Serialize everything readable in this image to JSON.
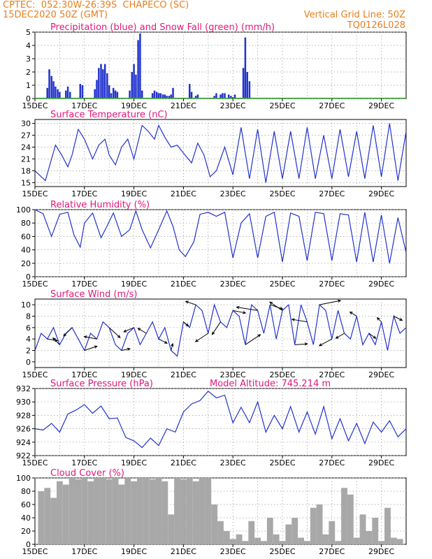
{
  "header": {
    "line1": "CPTEC:  052:30W-26:39S  CHAPECO (SC)",
    "line2": "15DEC2020 50Z (GMT)",
    "vgrid": "Vertical Grid Line: 50Z",
    "code": "TQ0126L028"
  },
  "colors": {
    "header": "#e57f1e",
    "panel_title": "#e0177a",
    "series": "#2233cc",
    "snow": "#22aa22",
    "cloud": "#a8a8a8"
  },
  "x_ticks": [
    "15DEC",
    "17DEC",
    "19DEC",
    "21DEC",
    "23DEC",
    "25DEC",
    "27DEC",
    "29DEC"
  ],
  "chart_data": [
    {
      "type": "bar",
      "title": "Precipitation (blue) and Snow Fall (green) (mm/h)",
      "xlabel": "",
      "ylabel": "",
      "xlim": [
        0,
        15
      ],
      "ylim": [
        0,
        5
      ],
      "y_ticks": [
        0,
        1,
        2,
        3,
        4,
        5
      ],
      "grid": true,
      "series": [
        {
          "name": "Precipitation",
          "color": "#2233cc",
          "x": [
            0.5,
            0.58,
            0.67,
            0.75,
            0.83,
            0.92,
            1.0,
            1.25,
            1.33,
            1.42,
            1.83,
            1.92,
            2.42,
            2.5,
            2.58,
            2.67,
            2.75,
            2.83,
            2.92,
            3.0,
            3.08,
            3.17,
            3.25,
            3.33,
            3.83,
            3.92,
            4.0,
            4.08,
            4.17,
            4.25,
            4.33,
            4.75,
            4.83,
            4.92,
            5.0,
            5.08,
            5.17,
            5.25,
            5.33,
            5.42,
            5.5,
            5.58,
            6.25,
            6.33,
            6.5,
            6.58,
            7.25,
            7.33,
            7.5,
            7.58,
            7.67,
            7.83,
            7.92,
            8.0,
            8.08,
            8.42,
            8.5,
            8.58,
            8.67
          ],
          "values": [
            0.8,
            2.2,
            1.7,
            1.3,
            0.9,
            0.7,
            0.5,
            0.6,
            0.9,
            0.5,
            1.1,
            1.0,
            0.7,
            1.4,
            2.3,
            2.6,
            2.2,
            2.6,
            1.9,
            1.0,
            0.4,
            0.8,
            0.6,
            0.5,
            0.6,
            2.0,
            2.6,
            1.8,
            4.4,
            4.9,
            0.6,
            0.4,
            0.6,
            0.5,
            0.4,
            0.4,
            0.3,
            0.3,
            0.2,
            0.2,
            0.3,
            0.8,
            1.1,
            0.5,
            0.2,
            0.3,
            0.2,
            0.4,
            0.3,
            0.4,
            0.4,
            0.3,
            0.2,
            0.1,
            0.3,
            2.3,
            4.6,
            2.0,
            1.3
          ]
        },
        {
          "name": "Snow Fall",
          "color": "#22aa22",
          "x": [],
          "values": []
        }
      ]
    },
    {
      "type": "line",
      "title": "Surface Temperature (nC)",
      "xlabel": "",
      "ylabel": "",
      "xlim": [
        0,
        15
      ],
      "ylim": [
        14,
        31
      ],
      "y_ticks": [
        15,
        18,
        21,
        24,
        27,
        30
      ],
      "grid": true,
      "series": [
        {
          "name": "Temperature",
          "x": [
            0.0,
            0.42,
            0.83,
            1.08,
            1.33,
            1.5,
            1.75,
            2.0,
            2.33,
            2.58,
            2.83,
            3.0,
            3.25,
            3.5,
            3.75,
            4.0,
            4.33,
            4.58,
            4.83,
            5.0,
            5.25,
            5.5,
            5.75,
            6.0,
            6.33,
            6.58,
            6.83,
            7.08,
            7.33,
            7.67,
            8.0,
            8.33,
            8.67,
            9.0,
            9.33,
            9.67,
            10.0,
            10.33,
            10.67,
            11.0,
            11.33,
            11.67,
            12.0,
            12.33,
            12.67,
            13.0,
            13.33,
            13.67,
            14.0,
            14.33,
            14.67,
            15.0
          ],
          "y": [
            18,
            15.5,
            24.5,
            22,
            19,
            22,
            28.5,
            26,
            21,
            24.5,
            26,
            22,
            19.5,
            24,
            26,
            21,
            29.5,
            28,
            26,
            29.5,
            26.5,
            24,
            24.5,
            22.5,
            20,
            25,
            22,
            16.5,
            18,
            24,
            17,
            29,
            16,
            28.5,
            15,
            28,
            16,
            28,
            16,
            29,
            16,
            27,
            16,
            28.5,
            16.5,
            28,
            16,
            29.5,
            16.5,
            30,
            15.5,
            28
          ]
        }
      ]
    },
    {
      "type": "line",
      "title": "Relative Humidity (%)",
      "xlabel": "",
      "ylabel": "",
      "xlim": [
        0,
        15
      ],
      "ylim": [
        0,
        100
      ],
      "y_ticks": [
        0,
        20,
        40,
        60,
        80,
        100
      ],
      "grid": true,
      "series": [
        {
          "name": "Relative Humidity",
          "x": [
            0.0,
            0.33,
            0.67,
            1.0,
            1.33,
            1.58,
            1.83,
            2.0,
            2.33,
            2.67,
            2.92,
            3.17,
            3.5,
            3.83,
            4.08,
            4.33,
            4.67,
            5.0,
            5.33,
            5.58,
            5.83,
            6.08,
            6.42,
            6.67,
            7.0,
            7.33,
            7.67,
            8.0,
            8.33,
            8.67,
            9.0,
            9.33,
            9.67,
            10.0,
            10.33,
            10.67,
            11.0,
            11.33,
            11.67,
            12.0,
            12.33,
            12.67,
            13.0,
            13.33,
            13.67,
            14.0,
            14.33,
            14.67,
            15.0
          ],
          "y": [
            100,
            94,
            60,
            93,
            96,
            62,
            44,
            80,
            95,
            58,
            76,
            95,
            60,
            70,
            98,
            70,
            43,
            70,
            98,
            75,
            40,
            30,
            52,
            93,
            96,
            90,
            96,
            28,
            80,
            94,
            28,
            90,
            96,
            22,
            95,
            90,
            24,
            96,
            94,
            24,
            94,
            92,
            22,
            96,
            22,
            92,
            20,
            88,
            36
          ]
        }
      ]
    },
    {
      "type": "line",
      "title": "Surface Wind (m/s)",
      "xlabel": "",
      "ylabel": "",
      "xlim": [
        0,
        15
      ],
      "ylim": [
        -1,
        11
      ],
      "y_ticks": [
        0,
        2,
        4,
        6,
        8,
        10
      ],
      "grid": true,
      "series": [
        {
          "name": "Wind Speed",
          "x": [
            0.0,
            0.25,
            0.5,
            0.75,
            1.0,
            1.25,
            1.5,
            1.75,
            2.0,
            2.25,
            2.5,
            2.75,
            3.0,
            3.25,
            3.5,
            3.75,
            4.0,
            4.25,
            4.5,
            4.75,
            5.0,
            5.25,
            5.5,
            5.75,
            6.0,
            6.25,
            6.5,
            6.75,
            7.0,
            7.25,
            7.5,
            7.75,
            8.0,
            8.25,
            8.5,
            8.75,
            9.0,
            9.25,
            9.5,
            9.75,
            10.0,
            10.25,
            10.5,
            10.75,
            11.0,
            11.25,
            11.5,
            11.75,
            12.0,
            12.25,
            12.5,
            12.75,
            13.0,
            13.25,
            13.5,
            13.75,
            14.0,
            14.25,
            14.5,
            14.75,
            15.0
          ],
          "y": [
            2,
            5,
            4,
            6,
            3,
            5,
            6,
            4,
            2,
            5,
            4,
            7,
            6,
            3,
            2,
            5,
            6,
            3,
            5,
            7,
            4,
            6,
            2,
            1,
            7,
            6,
            10,
            9,
            5,
            10,
            7,
            6,
            9,
            8,
            3,
            10,
            9,
            5,
            10,
            4,
            9,
            10,
            3,
            10,
            7,
            3,
            10,
            9,
            4,
            9,
            5,
            4,
            8,
            3,
            5,
            3,
            7,
            2,
            8,
            5,
            6
          ]
        }
      ],
      "wind_vectors": {
        "x": [
          0.5,
          1.0,
          1.5,
          2.0,
          2.5,
          3.0,
          3.5,
          4.0,
          4.5,
          5.0,
          5.5,
          6.0,
          6.5,
          7.0,
          7.5,
          8.0,
          8.5,
          9.0,
          9.5,
          10.0,
          10.5,
          11.0,
          11.5,
          12.0,
          12.5,
          13.0,
          13.5,
          14.0,
          14.5
        ],
        "u": [
          1.2,
          -0.8,
          -1.0,
          1.5,
          -1.5,
          1.3,
          1.0,
          -1.2,
          -1.0,
          1.0,
          0.2,
          0.6,
          -1.2,
          -1.5,
          -1.0,
          1.5,
          1.8,
          -2.5,
          1.5,
          -1.5,
          1.5,
          -1.8,
          2.5,
          -1.5,
          -1.0,
          -0.8,
          0.8,
          -0.5,
          1.0
        ],
        "v": [
          -0.2,
          0.8,
          -1.0,
          0.5,
          0.3,
          -1.2,
          0.2,
          -0.5,
          0.6,
          -0.5,
          0.8,
          -0.5,
          0.4,
          -1.0,
          -1.5,
          -0.3,
          1.2,
          0.4,
          -0.5,
          1.0,
          0.1,
          0.3,
          0.5,
          -0.8,
          -0.6,
          0.5,
          -0.6,
          0.5,
          -0.5
        ]
      }
    },
    {
      "type": "line",
      "title": "Surface Pressure (hPa)",
      "annotation": "Model Altitude: 745.214  m",
      "xlabel": "",
      "ylabel": "",
      "xlim": [
        0,
        15
      ],
      "ylim": [
        922,
        932
      ],
      "y_ticks": [
        922,
        924,
        926,
        928,
        930,
        932
      ],
      "grid": true,
      "series": [
        {
          "name": "Surface Pressure",
          "x": [
            0.0,
            0.33,
            0.67,
            1.0,
            1.33,
            1.67,
            2.0,
            2.33,
            2.67,
            3.0,
            3.33,
            3.67,
            4.0,
            4.33,
            4.67,
            5.0,
            5.33,
            5.67,
            6.0,
            6.33,
            6.67,
            7.0,
            7.33,
            7.67,
            8.0,
            8.33,
            8.67,
            9.0,
            9.33,
            9.67,
            10.0,
            10.33,
            10.67,
            11.0,
            11.33,
            11.67,
            12.0,
            12.33,
            12.67,
            13.0,
            13.33,
            13.67,
            14.0,
            14.33,
            14.67,
            15.0
          ],
          "y": [
            926,
            925.8,
            926.8,
            925.5,
            928.2,
            928.8,
            929.6,
            928.3,
            929.4,
            927.5,
            927.6,
            924.7,
            924.2,
            923.2,
            924.6,
            923.5,
            926.0,
            925.5,
            928.5,
            929.7,
            930.2,
            931.6,
            930.6,
            931.0,
            926.9,
            929.2,
            926.9,
            930.0,
            925.5,
            928.0,
            926.0,
            929.3,
            925.5,
            928.5,
            925.2,
            929.3,
            924.5,
            927.5,
            924.2,
            926.8,
            923.8,
            927.0,
            925.5,
            927.2,
            924.8,
            926.0
          ]
        }
      ]
    },
    {
      "type": "bar",
      "title": "Cloud Cover (%)",
      "xlabel": "",
      "ylabel": "",
      "xlim": [
        0,
        15
      ],
      "ylim": [
        0,
        100
      ],
      "y_ticks": [
        0,
        20,
        40,
        60,
        80,
        100
      ],
      "grid": true,
      "series": [
        {
          "name": "Cloud Cover",
          "color": "#a8a8a8",
          "x": [
            0.25,
            0.5,
            0.75,
            1.0,
            1.25,
            1.5,
            1.75,
            2.0,
            2.25,
            2.5,
            2.75,
            3.0,
            3.25,
            3.5,
            3.75,
            4.0,
            4.25,
            4.5,
            4.75,
            5.0,
            5.25,
            5.5,
            5.75,
            6.0,
            6.25,
            6.5,
            6.75,
            7.0,
            7.25,
            7.5,
            7.75,
            8.0,
            8.25,
            8.5,
            8.75,
            9.0,
            9.25,
            9.5,
            9.75,
            10.0,
            10.25,
            10.5,
            10.75,
            11.0,
            11.25,
            11.5,
            11.75,
            12.0,
            12.25,
            12.5,
            12.75,
            13.0,
            13.25,
            13.5,
            13.75,
            14.0,
            14.25,
            14.5,
            14.75
          ],
          "values": [
            80,
            85,
            70,
            95,
            90,
            100,
            98,
            100,
            95,
            100,
            100,
            98,
            100,
            90,
            100,
            95,
            100,
            100,
            98,
            100,
            95,
            45,
            100,
            98,
            100,
            95,
            100,
            100,
            60,
            35,
            20,
            8,
            15,
            5,
            35,
            10,
            5,
            40,
            15,
            5,
            30,
            40,
            10,
            5,
            55,
            60,
            15,
            35,
            5,
            85,
            75,
            10,
            45,
            20,
            40,
            5,
            55,
            10,
            8
          ]
        }
      ]
    }
  ]
}
